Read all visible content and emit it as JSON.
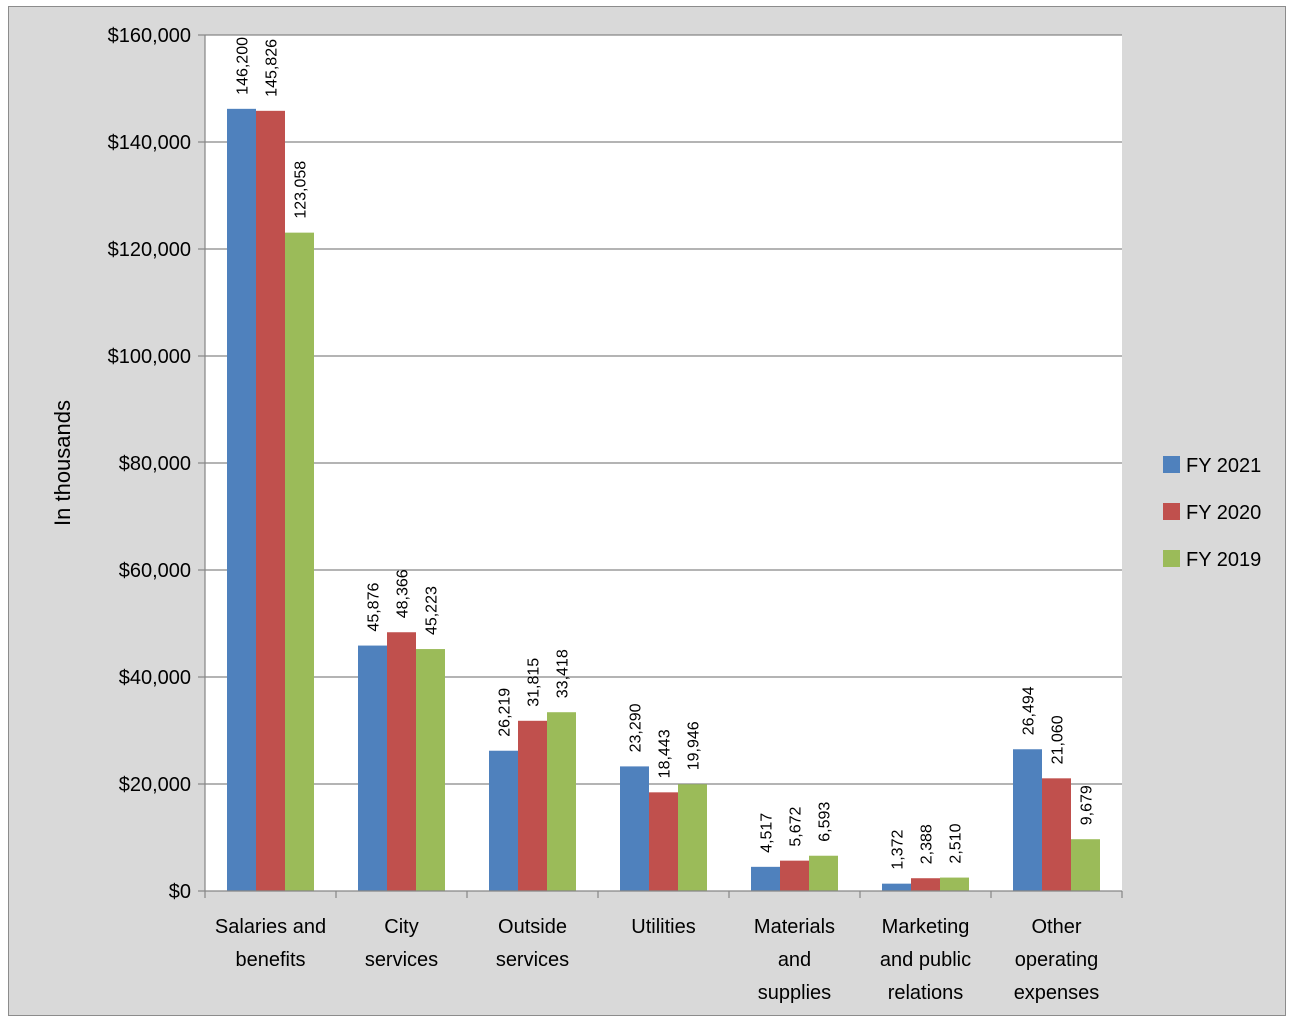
{
  "chart_data": {
    "type": "bar",
    "ylabel": "In thousands",
    "ylim": [
      0,
      160000
    ],
    "ytick_step": 20000,
    "ytick_labels": [
      "$0",
      "$20,000",
      "$40,000",
      "$60,000",
      "$80,000",
      "$100,000",
      "$120,000",
      "$140,000",
      "$160,000"
    ],
    "grid": true,
    "legend_position": "right",
    "categories": [
      [
        "Salaries and",
        "benefits"
      ],
      [
        "City",
        "services"
      ],
      [
        "Outside",
        "services"
      ],
      [
        "Utilities"
      ],
      [
        "Materials",
        "and",
        "supplies"
      ],
      [
        "Marketing",
        "and public",
        "relations"
      ],
      [
        "Other",
        "operating",
        "expenses"
      ]
    ],
    "series": [
      {
        "name": "FY 2021",
        "color": "#4f81bd",
        "values": [
          146200,
          45876,
          26219,
          23290,
          4517,
          1372,
          26494
        ],
        "labels": [
          "146,200",
          "45,876",
          "26,219",
          "23,290",
          "4,517",
          "1,372",
          "26,494"
        ]
      },
      {
        "name": "FY 2020",
        "color": "#c0504d",
        "values": [
          145826,
          48366,
          31815,
          18443,
          5672,
          2388,
          21060
        ],
        "labels": [
          "145,826",
          "48,366",
          "31,815",
          "18,443",
          "5,672",
          "2,388",
          "21,060"
        ]
      },
      {
        "name": "FY 2019",
        "color": "#9bbb59",
        "values": [
          123058,
          45223,
          33418,
          19946,
          6593,
          2510,
          9679
        ],
        "labels": [
          "123,058",
          "45,223",
          "33,418",
          "19,946",
          "6,593",
          "2,510",
          "9,679"
        ]
      }
    ]
  }
}
